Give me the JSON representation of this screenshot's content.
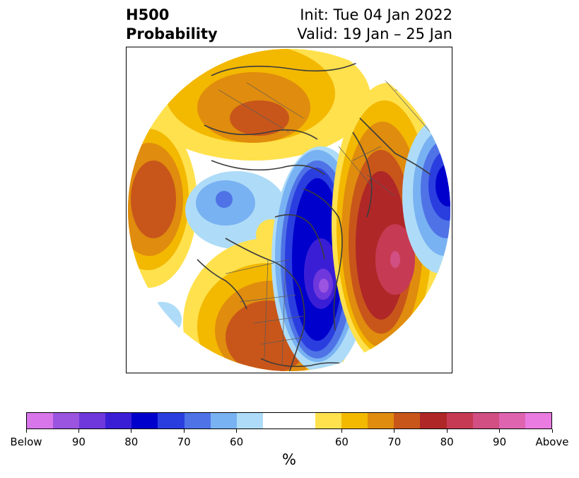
{
  "title": {
    "variable": "H500",
    "product": "Probability",
    "init": "Init: Tue 04 Jan 2022",
    "valid": "Valid: 19 Jan – 25 Jan"
  },
  "map": {
    "projection": "north-polar-stereographic",
    "features": [
      "coastlines",
      "country-borders",
      "state-province-borders"
    ],
    "anomaly_regions": [
      {
        "name": "eastern-north-america",
        "sign": "below",
        "peak_level": "90"
      },
      {
        "name": "north-atlantic",
        "sign": "above",
        "peak_level": "90"
      },
      {
        "name": "western-north-america",
        "sign": "above",
        "peak_level": "70"
      },
      {
        "name": "northern-siberia",
        "sign": "above",
        "peak_level": "70"
      },
      {
        "name": "north-pacific",
        "sign": "above",
        "peak_level": "70"
      },
      {
        "name": "scandinavia-europe",
        "sign": "above",
        "peak_level": "80"
      },
      {
        "name": "central-asia",
        "sign": "below",
        "peak_level": "80"
      },
      {
        "name": "alaska-bering",
        "sign": "below",
        "peak_level": "60"
      }
    ]
  },
  "colorbar": {
    "colors": [
      "#d875ea",
      "#9a54e0",
      "#6e38dc",
      "#3a1ed6",
      "#0000cc",
      "#2a3edf",
      "#4f73e6",
      "#79b2f2",
      "#aedcf8",
      "#ffffff",
      "#ffe14d",
      "#f3b800",
      "#e08c0e",
      "#c8561a",
      "#b02727",
      "#c73a54",
      "#d14f82",
      "#df64b0",
      "#ea7be0"
    ],
    "tick_labels": [
      "Below",
      "90",
      "80",
      "70",
      "60",
      "60",
      "70",
      "80",
      "90",
      "Above"
    ],
    "unit": "%"
  }
}
